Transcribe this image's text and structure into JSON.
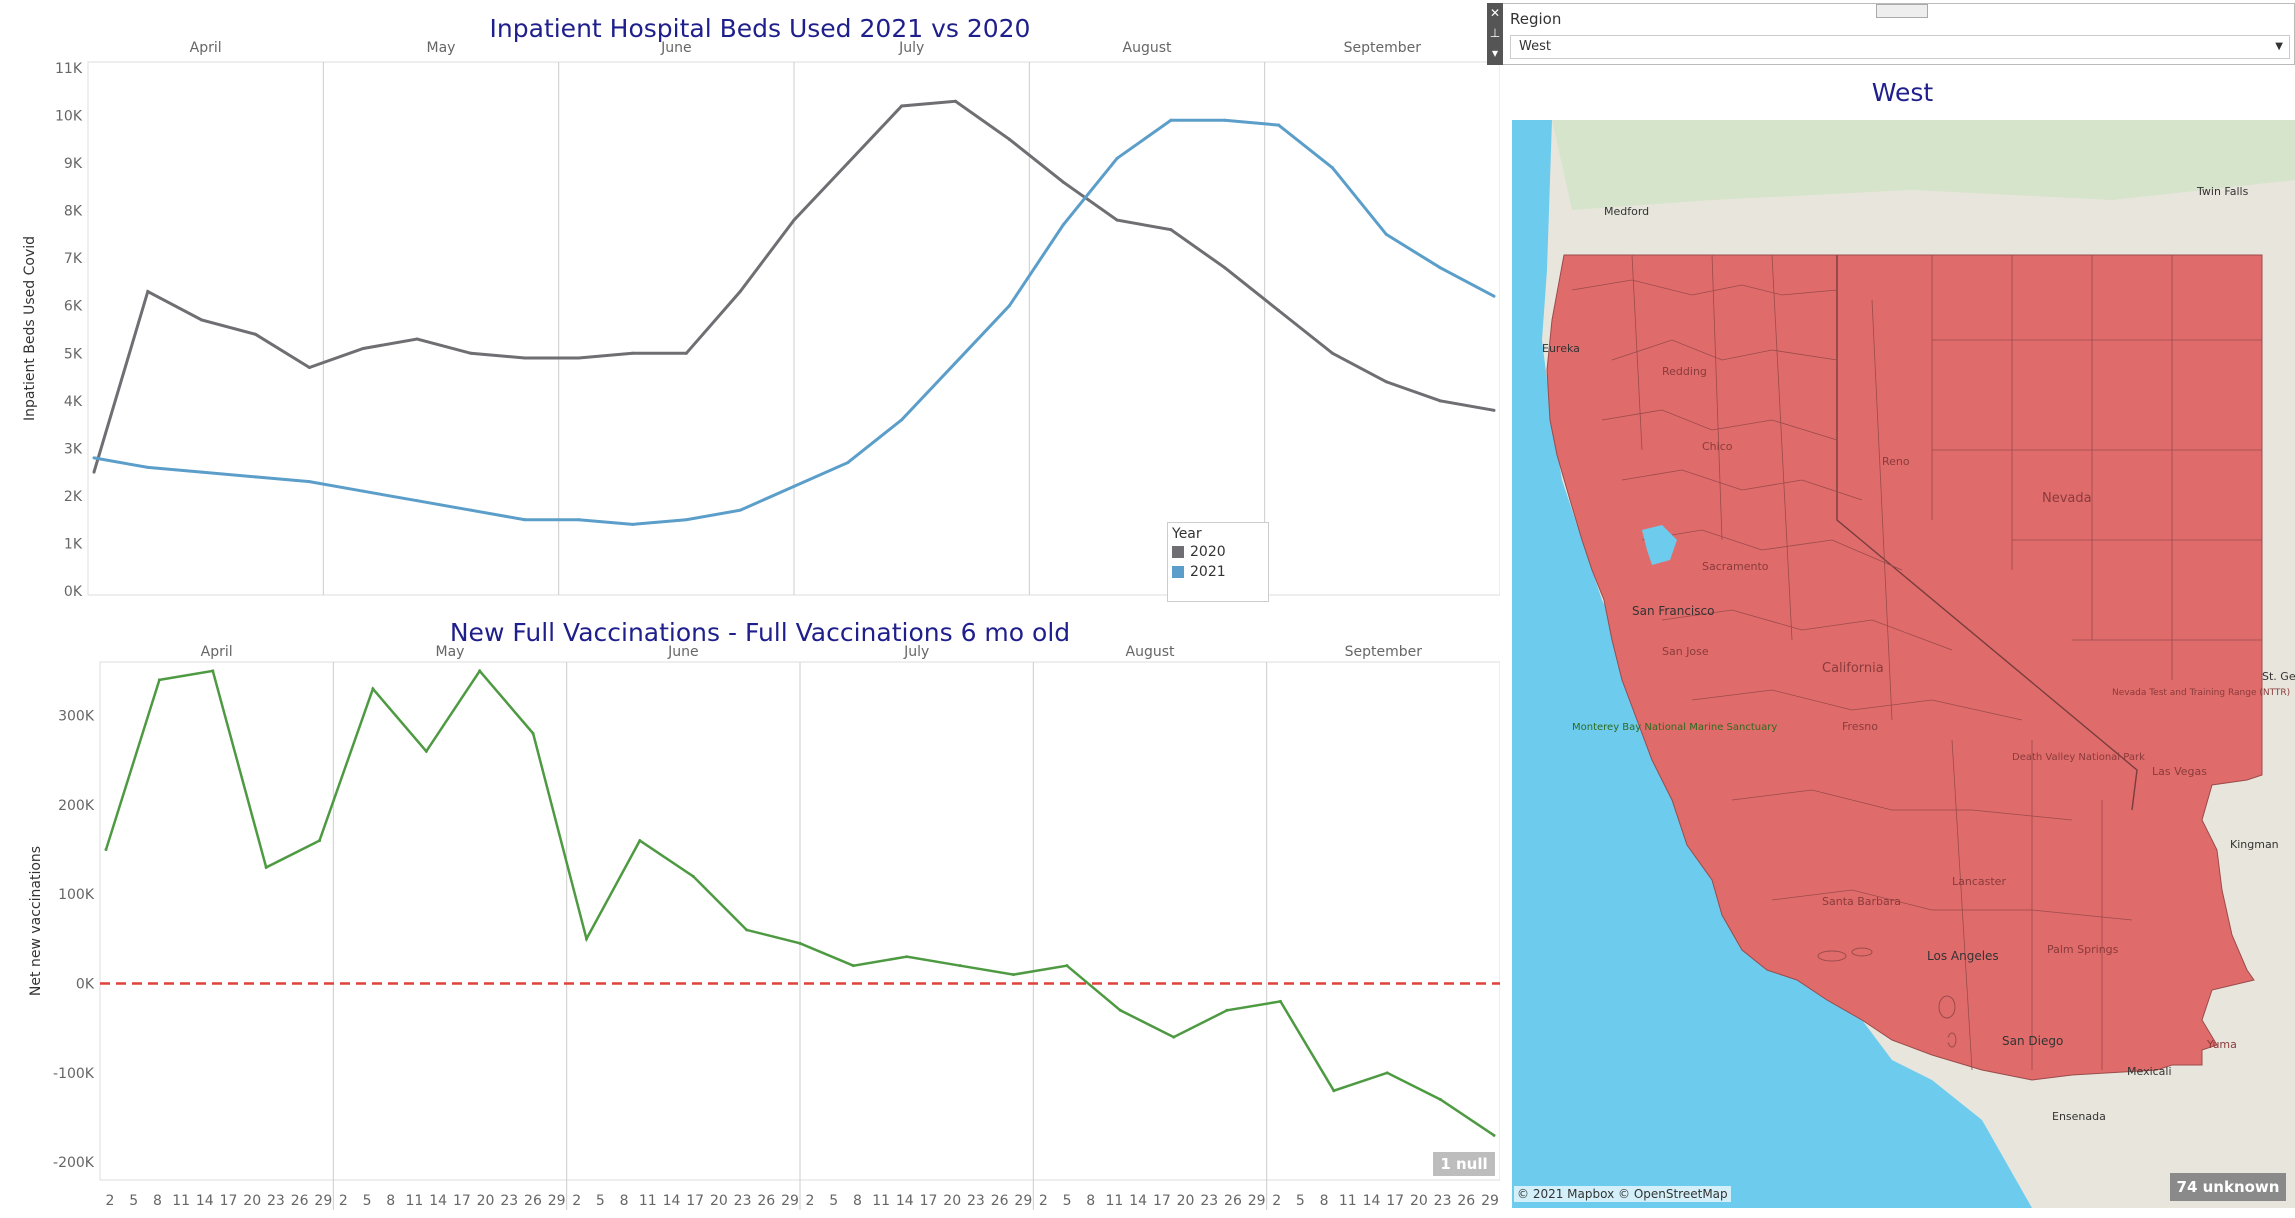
{
  "colors": {
    "title": "#1f1f8c",
    "series_2020": "#6e6e73",
    "series_2021": "#5b9ec9",
    "vaccination_line": "#4e9a42",
    "zero_line": "#e0413b",
    "region_fill": "#e06b6b",
    "ocean": "#6dcbee",
    "land": "#e8e6dc"
  },
  "hospital_chart": {
    "title": "Inpatient Hospital Beds Used 2021 vs 2020",
    "y_axis_label": "Inpatient Beds Used Covid",
    "y_ticks": [
      "0K",
      "1K",
      "2K",
      "3K",
      "4K",
      "5K",
      "6K",
      "7K",
      "8K",
      "9K",
      "10K",
      "11K"
    ],
    "months": [
      "April",
      "May",
      "June",
      "July",
      "August",
      "September"
    ],
    "legend_title": "Year",
    "legend_items": [
      {
        "label": "2020",
        "color": "#6e6e73"
      },
      {
        "label": "2021",
        "color": "#5b9ec9"
      }
    ]
  },
  "vaccination_chart": {
    "title": "New Full Vaccinations - Full Vaccinations 6 mo old",
    "y_axis_label": "Net new vaccinations",
    "y_ticks": [
      "-200K",
      "-100K",
      "0K",
      "100K",
      "200K",
      "300K"
    ],
    "months": [
      "April",
      "May",
      "June",
      "July",
      "August",
      "September"
    ],
    "x_day_ticks": [
      [
        "2",
        "5",
        "8",
        "11",
        "14",
        "17",
        "20",
        "23",
        "26",
        "29"
      ],
      [
        "2",
        "5",
        "8",
        "11",
        "14",
        "17",
        "20",
        "23",
        "26",
        "29"
      ],
      [
        "2",
        "5",
        "8",
        "11",
        "14",
        "17",
        "20",
        "23",
        "26",
        "29"
      ],
      [
        "2",
        "5",
        "8",
        "11",
        "14",
        "17",
        "20",
        "23",
        "26",
        "29"
      ],
      [
        "2",
        "5",
        "8",
        "11",
        "14",
        "17",
        "20",
        "23",
        "26",
        "29"
      ],
      [
        "2",
        "5",
        "8",
        "11",
        "14",
        "17",
        "20",
        "23",
        "26",
        "29"
      ]
    ],
    "null_badge": "1 null"
  },
  "chart_data": [
    {
      "type": "line",
      "title": "Inpatient Hospital Beds Used 2021 vs 2020",
      "ylabel": "Inpatient Beds Used Covid",
      "ylim": [
        0,
        11000
      ],
      "x": [
        "Apr 1",
        "Apr 8",
        "Apr 15",
        "Apr 22",
        "Apr 29",
        "May 6",
        "May 13",
        "May 20",
        "May 27",
        "Jun 3",
        "Jun 10",
        "Jun 17",
        "Jun 24",
        "Jul 1",
        "Jul 8",
        "Jul 15",
        "Jul 22",
        "Jul 29",
        "Aug 5",
        "Aug 12",
        "Aug 19",
        "Aug 26",
        "Sep 2",
        "Sep 9",
        "Sep 16",
        "Sep 23",
        "Sep 30"
      ],
      "series": [
        {
          "name": "2020",
          "values": [
            2500,
            6300,
            5700,
            5400,
            4700,
            5100,
            5300,
            5000,
            4900,
            4900,
            5000,
            5000,
            6300,
            7800,
            9000,
            10200,
            10300,
            9500,
            8600,
            7800,
            7600,
            6800,
            5900,
            5000,
            4400,
            4000,
            3800
          ]
        },
        {
          "name": "2021",
          "values": [
            2800,
            2600,
            2500,
            2400,
            2300,
            2100,
            1900,
            1700,
            1500,
            1500,
            1400,
            1500,
            1700,
            2200,
            2700,
            3600,
            4800,
            6000,
            7700,
            9100,
            9900,
            9900,
            9800,
            8900,
            7500,
            6800,
            6200
          ]
        }
      ],
      "legend": "bottom-right"
    },
    {
      "type": "line",
      "title": "New Full Vaccinations - Full Vaccinations 6 mo old",
      "ylabel": "Net new vaccinations",
      "ylim": [
        -200000,
        350000
      ],
      "x": [
        "Apr 1",
        "Apr 8",
        "Apr 15",
        "Apr 22",
        "Apr 29",
        "May 6",
        "May 13",
        "May 20",
        "May 27",
        "Jun 3",
        "Jun 10",
        "Jun 17",
        "Jun 24",
        "Jul 1",
        "Jul 8",
        "Jul 15",
        "Jul 22",
        "Jul 29",
        "Aug 5",
        "Aug 12",
        "Aug 19",
        "Aug 26",
        "Sep 2",
        "Sep 9",
        "Sep 16",
        "Sep 23",
        "Sep 30"
      ],
      "series": [
        {
          "name": "",
          "values": [
            150000,
            340000,
            350000,
            130000,
            160000,
            330000,
            260000,
            350000,
            280000,
            50000,
            160000,
            120000,
            60000,
            45000,
            20000,
            30000,
            20000,
            10000,
            20000,
            -30000,
            -60000,
            -30000,
            -20000,
            -120000,
            -100000,
            -130000,
            -170000
          ]
        }
      ]
    }
  ],
  "region_filter": {
    "label": "Region",
    "selected": "West"
  },
  "map": {
    "title": "West",
    "labels": [
      {
        "text": "Medford"
      },
      {
        "text": "Twin Falls"
      },
      {
        "text": "Eureka"
      },
      {
        "text": "Redding"
      },
      {
        "text": "Chico"
      },
      {
        "text": "Reno"
      },
      {
        "text": "Nevada"
      },
      {
        "text": "Sacramento"
      },
      {
        "text": "San Francisco"
      },
      {
        "text": "San Jose"
      },
      {
        "text": "California"
      },
      {
        "text": "Fresno"
      },
      {
        "text": "Monterey Bay National Marine Sanctuary"
      },
      {
        "text": "Death Valley National Park"
      },
      {
        "text": "Nevada Test and Training Range (NTTR)"
      },
      {
        "text": "Las Vegas"
      },
      {
        "text": "St. Ge"
      },
      {
        "text": "Kingman"
      },
      {
        "text": "Lancaster"
      },
      {
        "text": "Santa Barbara"
      },
      {
        "text": "Los Angeles"
      },
      {
        "text": "Palm Springs"
      },
      {
        "text": "San Diego"
      },
      {
        "text": "Yuma"
      },
      {
        "text": "Mexicali"
      },
      {
        "text": "Ensenada"
      }
    ],
    "attribution": "© 2021 Mapbox © OpenStreetMap",
    "unknown_badge": "74 unknown"
  }
}
